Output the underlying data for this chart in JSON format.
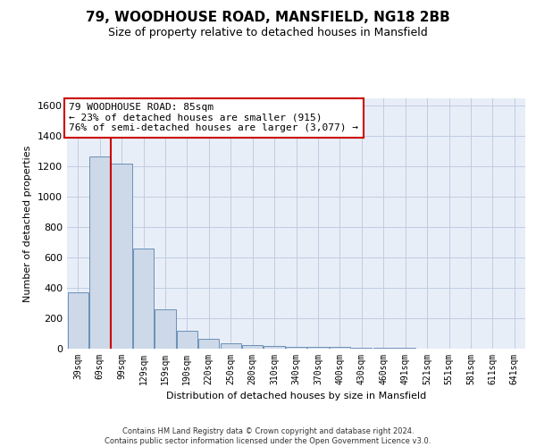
{
  "title": "79, WOODHOUSE ROAD, MANSFIELD, NG18 2BB",
  "subtitle": "Size of property relative to detached houses in Mansfield",
  "xlabel": "Distribution of detached houses by size in Mansfield",
  "ylabel": "Number of detached properties",
  "footer": "Contains HM Land Registry data © Crown copyright and database right 2024.\nContains public sector information licensed under the Open Government Licence v3.0.",
  "categories": [
    "39sqm",
    "69sqm",
    "99sqm",
    "129sqm",
    "159sqm",
    "190sqm",
    "220sqm",
    "250sqm",
    "280sqm",
    "310sqm",
    "340sqm",
    "370sqm",
    "400sqm",
    "430sqm",
    "460sqm",
    "491sqm",
    "521sqm",
    "551sqm",
    "581sqm",
    "611sqm",
    "641sqm"
  ],
  "values": [
    370,
    1265,
    1220,
    660,
    260,
    115,
    65,
    35,
    25,
    15,
    10,
    10,
    10,
    8,
    5,
    3,
    0,
    0,
    0,
    0,
    0
  ],
  "bar_color": "#cdd8e8",
  "bar_edge_color": "#6b90b8",
  "red_line_x": 1.5,
  "annotation_text": "79 WOODHOUSE ROAD: 85sqm\n← 23% of detached houses are smaller (915)\n76% of semi-detached houses are larger (3,077) →",
  "annotation_box_color": "#ffffff",
  "annotation_box_edge": "#cc0000",
  "red_line_color": "#cc0000",
  "ylim": [
    0,
    1650
  ],
  "yticks": [
    0,
    200,
    400,
    600,
    800,
    1000,
    1200,
    1400,
    1600
  ],
  "grid_color": "#c0cce0",
  "background_color": "#e8eef8",
  "title_fontsize": 11,
  "subtitle_fontsize": 9,
  "ylabel_fontsize": 8,
  "xlabel_fontsize": 8,
  "ytick_fontsize": 8,
  "xtick_fontsize": 7,
  "annotation_fontsize": 8
}
